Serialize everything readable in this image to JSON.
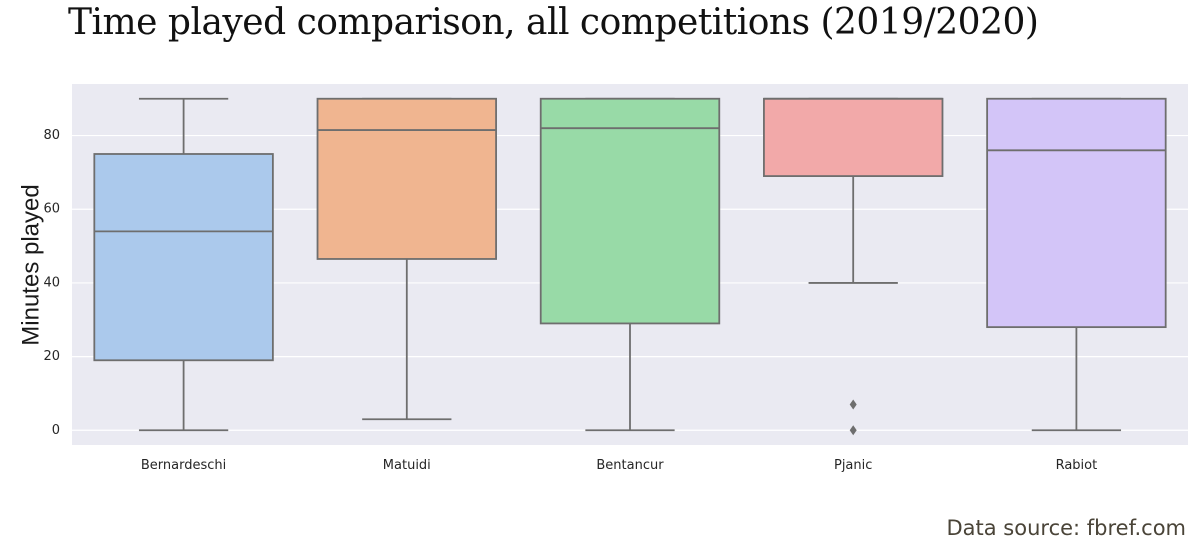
{
  "title": "Time played comparison, all competitions (2019/2020)",
  "source": "Data source: fbref.com",
  "chart_data": {
    "type": "box",
    "title": "Time played comparison, all competitions (2019/2020)",
    "xlabel": "",
    "ylabel": "Minutes played",
    "ylim": [
      -4,
      94
    ],
    "yticks": [
      0,
      20,
      40,
      60,
      80
    ],
    "grid": true,
    "categories": [
      "Bernardeschi",
      "Matuidi",
      "Bentancur",
      "Pjanic",
      "Rabiot"
    ],
    "boxes": [
      {
        "name": "Bernardeschi",
        "whisker_low": 0,
        "q1": 19,
        "median": 54,
        "q3": 75,
        "whisker_high": 90,
        "outliers": [],
        "color": "#abc9ec"
      },
      {
        "name": "Matuidi",
        "whisker_low": 3,
        "q1": 46.5,
        "median": 81.5,
        "q3": 90,
        "whisker_high": 90,
        "outliers": [],
        "color": "#f0b590"
      },
      {
        "name": "Bentancur",
        "whisker_low": 0,
        "q1": 29,
        "median": 82,
        "q3": 90,
        "whisker_high": 90,
        "outliers": [],
        "color": "#98daa7"
      },
      {
        "name": "Pjanic",
        "whisker_low": 40,
        "q1": 69,
        "median": 90,
        "q3": 90,
        "whisker_high": 90,
        "outliers": [
          7,
          0
        ],
        "color": "#f2a9a9"
      },
      {
        "name": "Rabiot",
        "whisker_low": 0,
        "q1": 28,
        "median": 76,
        "q3": 90,
        "whisker_high": 90,
        "outliers": [],
        "color": "#d3c5f8"
      }
    ]
  }
}
